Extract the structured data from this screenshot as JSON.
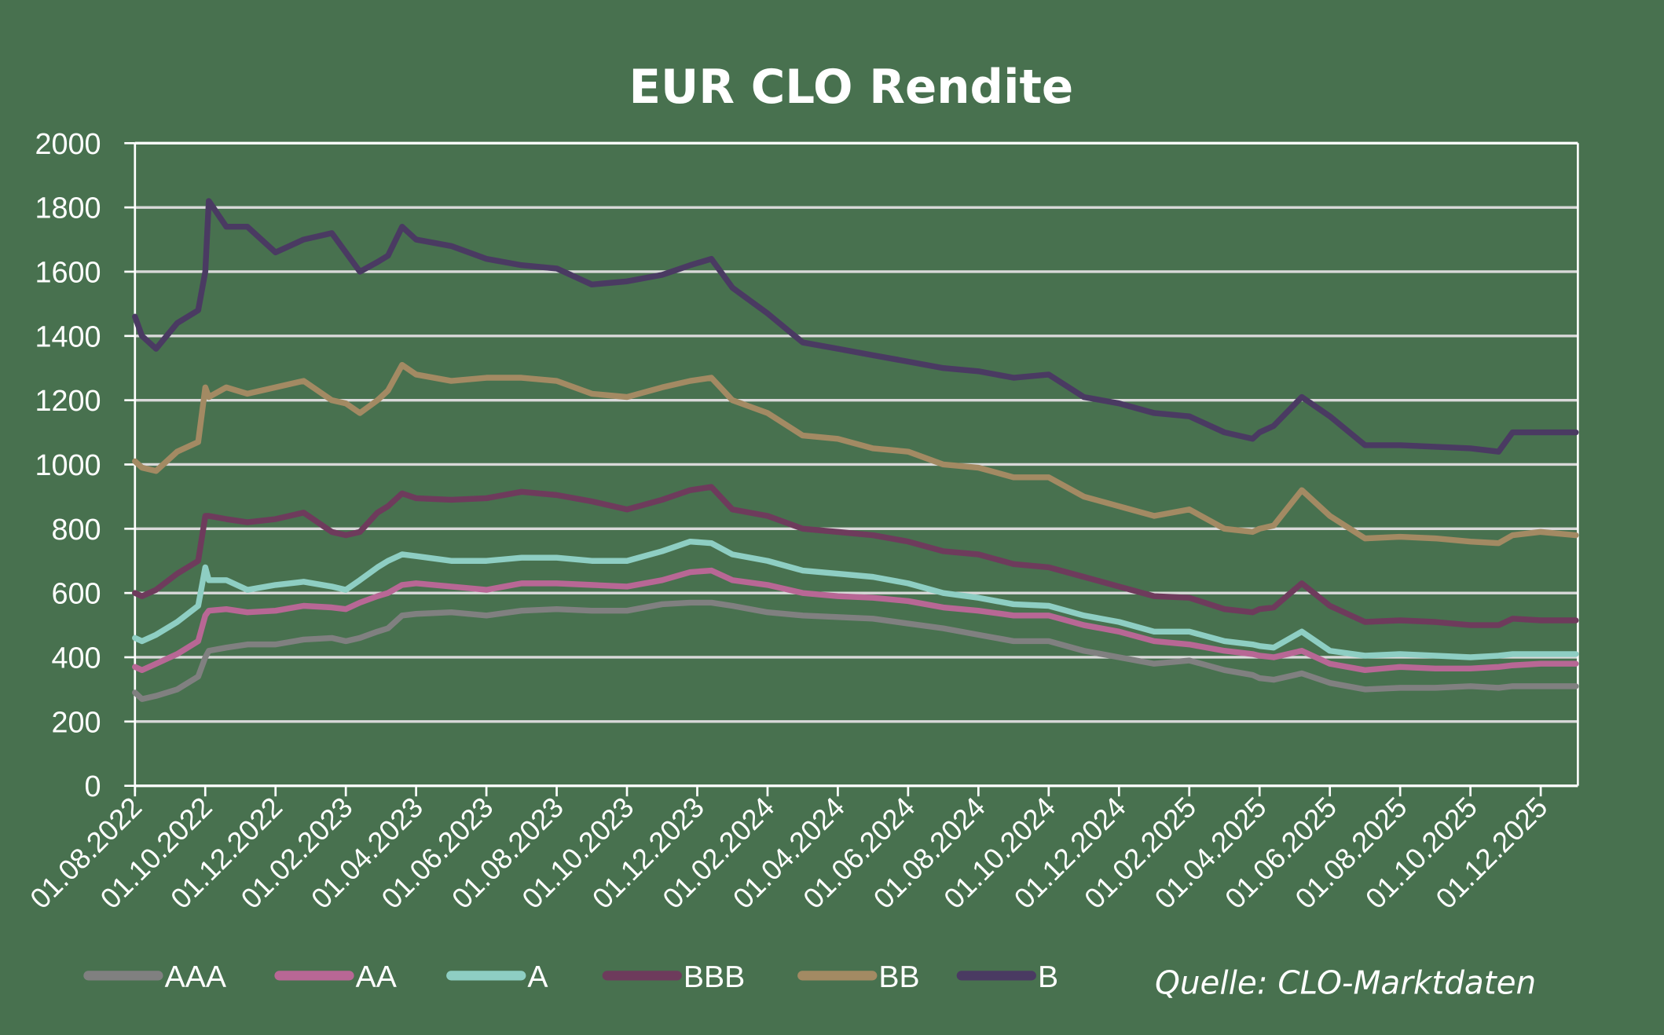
{
  "chart_data": {
    "type": "line",
    "title": "EUR CLO Rendite",
    "xlabel": "",
    "ylabel": "",
    "ylim": [
      0,
      2000
    ],
    "yticks": [
      0,
      200,
      400,
      600,
      800,
      1000,
      1200,
      1400,
      1600,
      1800,
      2000
    ],
    "grid": true,
    "legend_position": "bottom",
    "source": "Quelle: CLO-Marktdaten",
    "xticks": [
      "01.08.2022",
      "01.10.2022",
      "01.12.2022",
      "01.02.2023",
      "01.04.2023",
      "01.06.2023",
      "01.08.2023",
      "01.10.2023",
      "01.12.2023",
      "01.02.2024",
      "01.04.2024",
      "01.06.2024",
      "01.08.2024",
      "01.10.2024",
      "01.12.2024",
      "01.02.2025",
      "01.04.2025",
      "01.06.2025",
      "01.08.2025",
      "01.10.2025",
      "01.12.2025"
    ],
    "x": [
      0,
      0.1,
      0.3,
      0.6,
      0.9,
      1.0,
      1.05,
      1.3,
      1.6,
      2.0,
      2.4,
      2.8,
      3.0,
      3.2,
      3.45,
      3.6,
      3.8,
      4.0,
      4.5,
      5.0,
      5.5,
      6.0,
      6.5,
      7.0,
      7.5,
      7.9,
      8.2,
      8.5,
      9.0,
      9.5,
      10.0,
      10.5,
      11.0,
      11.5,
      12.0,
      12.5,
      13.0,
      13.5,
      14.0,
      14.5,
      15.0,
      15.5,
      15.9,
      16.0,
      16.2,
      16.6,
      17.0,
      17.5,
      18.0,
      18.5,
      19.0,
      19.4,
      19.6,
      20.0,
      20.5
    ],
    "series": [
      {
        "name": "AAA",
        "color": "#808080",
        "values": [
          290,
          270,
          280,
          300,
          340,
          400,
          420,
          430,
          440,
          440,
          455,
          460,
          450,
          460,
          480,
          490,
          530,
          535,
          540,
          530,
          545,
          550,
          545,
          545,
          565,
          570,
          570,
          560,
          540,
          530,
          525,
          520,
          505,
          490,
          470,
          450,
          450,
          420,
          400,
          380,
          390,
          360,
          345,
          335,
          330,
          350,
          320,
          300,
          305,
          305,
          310,
          305,
          310,
          310,
          310
        ]
      },
      {
        "name": "AA",
        "color": "#b86795",
        "values": [
          370,
          360,
          380,
          410,
          450,
          530,
          545,
          550,
          540,
          545,
          560,
          555,
          550,
          570,
          590,
          600,
          625,
          630,
          620,
          610,
          630,
          630,
          625,
          620,
          640,
          665,
          670,
          640,
          625,
          600,
          590,
          585,
          575,
          555,
          545,
          530,
          530,
          500,
          480,
          450,
          440,
          420,
          410,
          405,
          400,
          420,
          380,
          360,
          370,
          365,
          365,
          370,
          375,
          380,
          380
        ]
      },
      {
        "name": "A",
        "color": "#8ecec3",
        "values": [
          460,
          450,
          470,
          510,
          560,
          680,
          640,
          640,
          610,
          625,
          635,
          620,
          610,
          640,
          680,
          700,
          720,
          715,
          700,
          700,
          710,
          710,
          700,
          700,
          730,
          760,
          755,
          720,
          700,
          670,
          660,
          650,
          630,
          600,
          585,
          565,
          560,
          530,
          510,
          480,
          480,
          450,
          440,
          435,
          430,
          480,
          420,
          405,
          410,
          405,
          400,
          405,
          410,
          410,
          410
        ]
      },
      {
        "name": "BBB",
        "color": "#6e3b5c",
        "values": [
          600,
          590,
          610,
          660,
          700,
          840,
          840,
          830,
          820,
          830,
          850,
          790,
          780,
          790,
          850,
          870,
          910,
          895,
          890,
          895,
          915,
          905,
          885,
          860,
          890,
          920,
          930,
          860,
          840,
          800,
          790,
          780,
          760,
          730,
          720,
          690,
          680,
          650,
          620,
          590,
          585,
          550,
          540,
          550,
          555,
          630,
          560,
          510,
          515,
          510,
          500,
          500,
          520,
          515,
          515
        ]
      },
      {
        "name": "BB",
        "color": "#a38a63",
        "values": [
          1010,
          990,
          980,
          1040,
          1070,
          1240,
          1210,
          1240,
          1220,
          1240,
          1260,
          1200,
          1190,
          1160,
          1200,
          1230,
          1310,
          1280,
          1260,
          1270,
          1270,
          1260,
          1220,
          1210,
          1240,
          1260,
          1270,
          1200,
          1160,
          1090,
          1080,
          1050,
          1040,
          1000,
          990,
          960,
          960,
          900,
          870,
          840,
          860,
          800,
          790,
          800,
          810,
          920,
          840,
          770,
          775,
          770,
          760,
          755,
          780,
          790,
          780
        ]
      },
      {
        "name": "B",
        "color": "#4a3a62",
        "values": [
          1460,
          1400,
          1360,
          1440,
          1480,
          1600,
          1820,
          1740,
          1740,
          1660,
          1700,
          1720,
          1660,
          1600,
          1630,
          1650,
          1740,
          1700,
          1680,
          1640,
          1620,
          1610,
          1560,
          1570,
          1590,
          1620,
          1640,
          1550,
          1470,
          1380,
          1360,
          1340,
          1320,
          1300,
          1290,
          1270,
          1280,
          1210,
          1190,
          1160,
          1150,
          1100,
          1080,
          1100,
          1120,
          1210,
          1150,
          1060,
          1060,
          1055,
          1050,
          1040,
          1100,
          1100,
          1100
        ]
      }
    ]
  },
  "legend": {
    "items": [
      {
        "label": "AAA",
        "color": "#808080"
      },
      {
        "label": "AA",
        "color": "#b86795"
      },
      {
        "label": "A",
        "color": "#8ecec3"
      },
      {
        "label": "BBB",
        "color": "#6e3b5c"
      },
      {
        "label": "BB",
        "color": "#a38a63"
      },
      {
        "label": "B",
        "color": "#4a3a62"
      }
    ]
  },
  "colors": {
    "background": "#48714f",
    "axis": "#ffffff",
    "grid": "#d9d9d9",
    "text": "#ffffff"
  }
}
